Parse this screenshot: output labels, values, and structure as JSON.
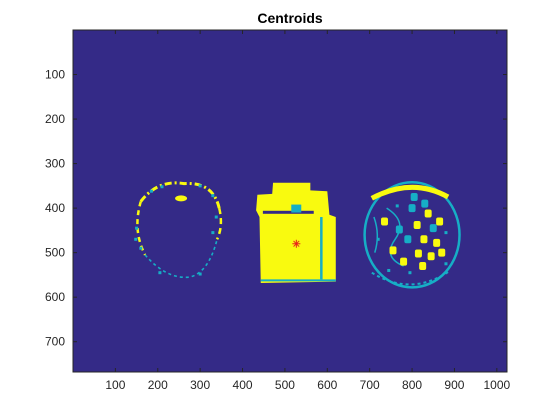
{
  "colors": {
    "background": "#342a87",
    "foreground": "#f9fa0f",
    "mid": "#16aec6",
    "marker": "#e8231c"
  },
  "chart_data": {
    "type": "heatmap",
    "title": "Centroids",
    "xlabel": "",
    "ylabel": "",
    "xlim": [
      0,
      1024
    ],
    "ylim": [
      0,
      768
    ],
    "y_reversed": true,
    "x_ticks": [
      100,
      200,
      300,
      400,
      500,
      600,
      700,
      800,
      900,
      1000
    ],
    "y_ticks": [
      100,
      200,
      300,
      400,
      500,
      600,
      700
    ],
    "x_tick_labels": [
      "100",
      "200",
      "300",
      "400",
      "500",
      "600",
      "700",
      "800",
      "900",
      "1000"
    ],
    "y_tick_labels": [
      "100",
      "200",
      "300",
      "400",
      "500",
      "600",
      "700"
    ],
    "grid": false,
    "image_size": [
      1024,
      768
    ],
    "centroids": [
      {
        "x": 527,
        "y": 480,
        "marker": "asterisk"
      }
    ]
  }
}
